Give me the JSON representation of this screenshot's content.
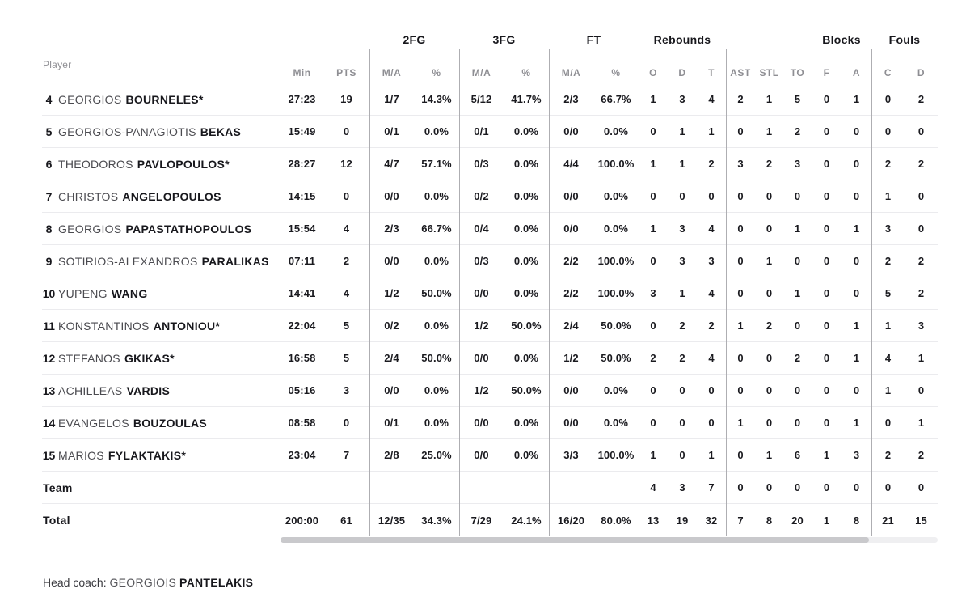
{
  "colors": {
    "background": "#ffffff",
    "text_dark": "#17171c",
    "text_gray": "#8e8e93",
    "first_name_gray": "#4a4a4f",
    "divider_line": "#aeaeb2",
    "row_separator": "#ebebee",
    "scrollbar_thumb": "#c9c9cc",
    "scrollbar_track": "#efeff1"
  },
  "table": {
    "groups": [
      "2FG",
      "3FG",
      "FT",
      "Rebounds",
      "Blocks",
      "Fouls"
    ],
    "player_header": "Player",
    "subheaders": {
      "min": "Min",
      "pts": "PTS",
      "ma": "M/A",
      "pct": "%",
      "o": "O",
      "d": "D",
      "t": "T",
      "ast": "AST",
      "stl": "STL",
      "to": "TO",
      "f": "F",
      "a": "A",
      "c": "C",
      "d2": "D"
    },
    "rows": [
      {
        "num": "4",
        "first": "GEORGIOS",
        "last": "BOURNELES*",
        "min": "27:23",
        "pts": "19",
        "fg2_ma": "1/7",
        "fg2_pct": "14.3%",
        "fg3_ma": "5/12",
        "fg3_pct": "41.7%",
        "ft_ma": "2/3",
        "ft_pct": "66.7%",
        "reb_o": "1",
        "reb_d": "3",
        "reb_t": "4",
        "ast": "2",
        "stl": "1",
        "to": "5",
        "blk_f": "0",
        "blk_a": "1",
        "foul_c": "0",
        "foul_d": "2"
      },
      {
        "num": "5",
        "first": "GEORGIOS-PANAGIOTIS",
        "last": "BEKAS",
        "min": "15:49",
        "pts": "0",
        "fg2_ma": "0/1",
        "fg2_pct": "0.0%",
        "fg3_ma": "0/1",
        "fg3_pct": "0.0%",
        "ft_ma": "0/0",
        "ft_pct": "0.0%",
        "reb_o": "0",
        "reb_d": "1",
        "reb_t": "1",
        "ast": "0",
        "stl": "1",
        "to": "2",
        "blk_f": "0",
        "blk_a": "0",
        "foul_c": "0",
        "foul_d": "0"
      },
      {
        "num": "6",
        "first": "THEODOROS",
        "last": "PAVLOPOULOS*",
        "min": "28:27",
        "pts": "12",
        "fg2_ma": "4/7",
        "fg2_pct": "57.1%",
        "fg3_ma": "0/3",
        "fg3_pct": "0.0%",
        "ft_ma": "4/4",
        "ft_pct": "100.0%",
        "reb_o": "1",
        "reb_d": "1",
        "reb_t": "2",
        "ast": "3",
        "stl": "2",
        "to": "3",
        "blk_f": "0",
        "blk_a": "0",
        "foul_c": "2",
        "foul_d": "2"
      },
      {
        "num": "7",
        "first": "CHRISTOS",
        "last": "ANGELOPOULOS",
        "min": "14:15",
        "pts": "0",
        "fg2_ma": "0/0",
        "fg2_pct": "0.0%",
        "fg3_ma": "0/2",
        "fg3_pct": "0.0%",
        "ft_ma": "0/0",
        "ft_pct": "0.0%",
        "reb_o": "0",
        "reb_d": "0",
        "reb_t": "0",
        "ast": "0",
        "stl": "0",
        "to": "0",
        "blk_f": "0",
        "blk_a": "0",
        "foul_c": "1",
        "foul_d": "0"
      },
      {
        "num": "8",
        "first": "GEORGIOS",
        "last": "PAPASTATHOPOULOS",
        "min": "15:54",
        "pts": "4",
        "fg2_ma": "2/3",
        "fg2_pct": "66.7%",
        "fg3_ma": "0/4",
        "fg3_pct": "0.0%",
        "ft_ma": "0/0",
        "ft_pct": "0.0%",
        "reb_o": "1",
        "reb_d": "3",
        "reb_t": "4",
        "ast": "0",
        "stl": "0",
        "to": "1",
        "blk_f": "0",
        "blk_a": "1",
        "foul_c": "3",
        "foul_d": "0"
      },
      {
        "num": "9",
        "first": "SOTIRIOS-ALEXANDROS",
        "last": "PARALIKAS",
        "min": "07:11",
        "pts": "2",
        "fg2_ma": "0/0",
        "fg2_pct": "0.0%",
        "fg3_ma": "0/3",
        "fg3_pct": "0.0%",
        "ft_ma": "2/2",
        "ft_pct": "100.0%",
        "reb_o": "0",
        "reb_d": "3",
        "reb_t": "3",
        "ast": "0",
        "stl": "1",
        "to": "0",
        "blk_f": "0",
        "blk_a": "0",
        "foul_c": "2",
        "foul_d": "2"
      },
      {
        "num": "10",
        "first": "YUPENG",
        "last": "WANG",
        "min": "14:41",
        "pts": "4",
        "fg2_ma": "1/2",
        "fg2_pct": "50.0%",
        "fg3_ma": "0/0",
        "fg3_pct": "0.0%",
        "ft_ma": "2/2",
        "ft_pct": "100.0%",
        "reb_o": "3",
        "reb_d": "1",
        "reb_t": "4",
        "ast": "0",
        "stl": "0",
        "to": "1",
        "blk_f": "0",
        "blk_a": "0",
        "foul_c": "5",
        "foul_d": "2"
      },
      {
        "num": "11",
        "first": "KONSTANTINOS",
        "last": "ANTONIOU*",
        "min": "22:04",
        "pts": "5",
        "fg2_ma": "0/2",
        "fg2_pct": "0.0%",
        "fg3_ma": "1/2",
        "fg3_pct": "50.0%",
        "ft_ma": "2/4",
        "ft_pct": "50.0%",
        "reb_o": "0",
        "reb_d": "2",
        "reb_t": "2",
        "ast": "1",
        "stl": "2",
        "to": "0",
        "blk_f": "0",
        "blk_a": "1",
        "foul_c": "1",
        "foul_d": "3"
      },
      {
        "num": "12",
        "first": "STEFANOS",
        "last": "GKIKAS*",
        "min": "16:58",
        "pts": "5",
        "fg2_ma": "2/4",
        "fg2_pct": "50.0%",
        "fg3_ma": "0/0",
        "fg3_pct": "0.0%",
        "ft_ma": "1/2",
        "ft_pct": "50.0%",
        "reb_o": "2",
        "reb_d": "2",
        "reb_t": "4",
        "ast": "0",
        "stl": "0",
        "to": "2",
        "blk_f": "0",
        "blk_a": "1",
        "foul_c": "4",
        "foul_d": "1"
      },
      {
        "num": "13",
        "first": "ACHILLEAS",
        "last": "VARDIS",
        "min": "05:16",
        "pts": "3",
        "fg2_ma": "0/0",
        "fg2_pct": "0.0%",
        "fg3_ma": "1/2",
        "fg3_pct": "50.0%",
        "ft_ma": "0/0",
        "ft_pct": "0.0%",
        "reb_o": "0",
        "reb_d": "0",
        "reb_t": "0",
        "ast": "0",
        "stl": "0",
        "to": "0",
        "blk_f": "0",
        "blk_a": "0",
        "foul_c": "1",
        "foul_d": "0"
      },
      {
        "num": "14",
        "first": "EVANGELOS",
        "last": "BOUZOULAS",
        "min": "08:58",
        "pts": "0",
        "fg2_ma": "0/1",
        "fg2_pct": "0.0%",
        "fg3_ma": "0/0",
        "fg3_pct": "0.0%",
        "ft_ma": "0/0",
        "ft_pct": "0.0%",
        "reb_o": "0",
        "reb_d": "0",
        "reb_t": "0",
        "ast": "1",
        "stl": "0",
        "to": "0",
        "blk_f": "0",
        "blk_a": "1",
        "foul_c": "0",
        "foul_d": "1"
      },
      {
        "num": "15",
        "first": "MARIOS",
        "last": "FYLAKTAKIS*",
        "min": "23:04",
        "pts": "7",
        "fg2_ma": "2/8",
        "fg2_pct": "25.0%",
        "fg3_ma": "0/0",
        "fg3_pct": "0.0%",
        "ft_ma": "3/3",
        "ft_pct": "100.0%",
        "reb_o": "1",
        "reb_d": "0",
        "reb_t": "1",
        "ast": "0",
        "stl": "1",
        "to": "6",
        "blk_f": "1",
        "blk_a": "3",
        "foul_c": "2",
        "foul_d": "2"
      }
    ],
    "team_row": {
      "label": "Team",
      "min": "",
      "pts": "",
      "fg2_ma": "",
      "fg2_pct": "",
      "fg3_ma": "",
      "fg3_pct": "",
      "ft_ma": "",
      "ft_pct": "",
      "reb_o": "4",
      "reb_d": "3",
      "reb_t": "7",
      "ast": "0",
      "stl": "0",
      "to": "0",
      "blk_f": "0",
      "blk_a": "0",
      "foul_c": "0",
      "foul_d": "0"
    },
    "total_row": {
      "label": "Total",
      "min": "200:00",
      "pts": "61",
      "fg2_ma": "12/35",
      "fg2_pct": "34.3%",
      "fg3_ma": "7/29",
      "fg3_pct": "24.1%",
      "ft_ma": "16/20",
      "ft_pct": "80.0%",
      "reb_o": "13",
      "reb_d": "19",
      "reb_t": "32",
      "ast": "7",
      "stl": "8",
      "to": "20",
      "blk_f": "1",
      "blk_a": "8",
      "foul_c": "21",
      "foul_d": "15"
    }
  },
  "footer": {
    "label": "Head coach:",
    "coach_first": "GEORGIOIS",
    "coach_last": "PANTELAKIS"
  }
}
